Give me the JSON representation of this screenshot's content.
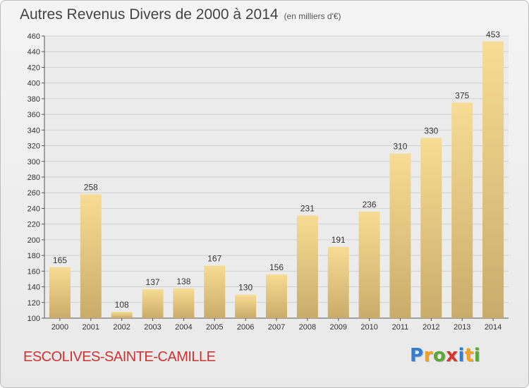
{
  "title": "Autres Revenus Divers de 2000 à 2014",
  "title_unit": "(en milliers d'€)",
  "commune": "ESCOLIVES-SAINTE-CAMILLE",
  "logo": {
    "letters": [
      "P",
      "r",
      "o",
      "x",
      "i",
      "t",
      "i"
    ],
    "colors": [
      "#2f7fd3",
      "#f2a21b",
      "#5aa832",
      "#d8352a",
      "#2f7fd3",
      "#f2a21b",
      "#5aa832"
    ]
  },
  "colors": {
    "bar_light": "#f7dc95",
    "bar_dark": "#c9ac69",
    "grid": "#d0d0d0",
    "axis_text": "#333333",
    "commune_text": "#cc3333"
  },
  "chart_data": {
    "type": "bar",
    "categories": [
      "2000",
      "2001",
      "2002",
      "2003",
      "2004",
      "2005",
      "2006",
      "2007",
      "2008",
      "2009",
      "2010",
      "2011",
      "2012",
      "2013",
      "2014"
    ],
    "values": [
      165,
      258,
      108,
      137,
      138,
      167,
      130,
      156,
      231,
      191,
      236,
      310,
      330,
      375,
      453
    ],
    "ylim": [
      100,
      460
    ],
    "yticks": [
      100,
      120,
      140,
      160,
      180,
      200,
      220,
      240,
      260,
      280,
      300,
      320,
      340,
      360,
      380,
      400,
      420,
      440,
      460
    ],
    "grid": true,
    "data_labels": true
  }
}
